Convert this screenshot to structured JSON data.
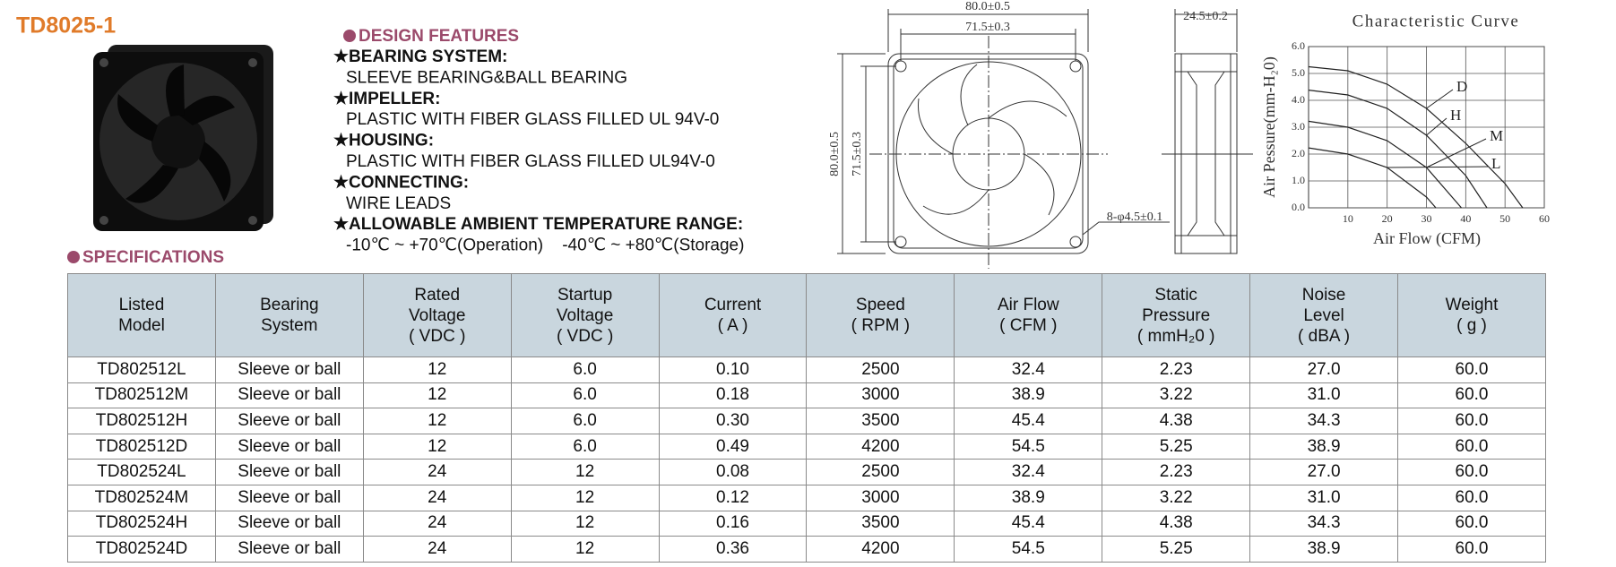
{
  "header": {
    "title": "TD8025-1"
  },
  "design": {
    "heading": "DESIGN FEATURES",
    "items": [
      {
        "heading": "★BEARING SYSTEM:",
        "text": "SLEEVE BEARING&BALL BEARING"
      },
      {
        "heading": "★IMPELLER:",
        "text": "PLASTIC WITH FIBER GLASS FILLED UL 94V-0"
      },
      {
        "heading": "★HOUSING:",
        "text": "PLASTIC WITH FIBER GLASS FILLED UL94V-0"
      },
      {
        "heading": "★CONNECTING:",
        "text": "WIRE LEADS"
      },
      {
        "heading": "★ALLOWABLE AMBIENT TEMPERATURE RANGE:",
        "text": "-10℃ ~ +70℃(Operation)    -40℃ ~ +80℃(Storage)"
      }
    ]
  },
  "dimensions": {
    "width": "80.0±0.5",
    "hole_spacing": "71.5±0.3",
    "height": "80.0±0.5",
    "hole_spacing_v": "71.5±0.3",
    "holes": "8-φ4.5±0.1",
    "depth": "24.5±0.2"
  },
  "curve": {
    "title": "Characteristic Curve",
    "x_label": "Air Flow (CFM)",
    "y_label": "Air Pessure(mm-H₂0)",
    "xlim": [
      0,
      60
    ],
    "ylim": [
      0,
      6
    ],
    "xticks": [
      10,
      20,
      30,
      40,
      50,
      60
    ],
    "yticks": [
      {
        "value": 0,
        "label": "0.0"
      },
      {
        "value": 1,
        "label": "1.0"
      },
      {
        "value": 2,
        "label": "2.0"
      },
      {
        "value": 3,
        "label": "3.0"
      },
      {
        "value": 4,
        "label": "4.0"
      },
      {
        "value": 5,
        "label": "5.0"
      },
      {
        "value": 6,
        "label": "6.0"
      }
    ],
    "series": [
      {
        "name": "D",
        "x": [
          0,
          10,
          20,
          30,
          40,
          50,
          54.5
        ],
        "values": [
          5.25,
          5.1,
          4.6,
          3.7,
          2.4,
          0.9,
          0
        ]
      },
      {
        "name": "H",
        "x": [
          0,
          10,
          20,
          30,
          40,
          45.4
        ],
        "values": [
          4.38,
          4.2,
          3.7,
          2.7,
          1.2,
          0
        ]
      },
      {
        "name": "M",
        "x": [
          0,
          10,
          20,
          30,
          38.9
        ],
        "values": [
          3.22,
          3.0,
          2.5,
          1.5,
          0
        ]
      },
      {
        "name": "L",
        "x": [
          0,
          10,
          20,
          30,
          32.4
        ],
        "values": [
          2.23,
          2.0,
          1.5,
          0.4,
          0
        ]
      }
    ]
  },
  "specifications": {
    "heading": "SPECIFICATIONS",
    "columns": [
      "Listed\nModel",
      "Bearing\nSystem",
      "Rated\nVoltage\n( VDC )",
      "Startup\nVoltage\n( VDC )",
      "Current\n( A )",
      "Speed\n( RPM )",
      "Air Flow\n( CFM )",
      "Static\nPressure\n( mmH₂0 )",
      "Noise\nLevel\n( dBA )",
      "Weight\n( g )"
    ],
    "rows": [
      [
        "TD802512L",
        "Sleeve or ball",
        "12",
        "6.0",
        "0.10",
        "2500",
        "32.4",
        "2.23",
        "27.0",
        "60.0"
      ],
      [
        "TD802512M",
        "Sleeve or ball",
        "12",
        "6.0",
        "0.18",
        "3000",
        "38.9",
        "3.22",
        "31.0",
        "60.0"
      ],
      [
        "TD802512H",
        "Sleeve or ball",
        "12",
        "6.0",
        "0.30",
        "3500",
        "45.4",
        "4.38",
        "34.3",
        "60.0"
      ],
      [
        "TD802512D",
        "Sleeve or ball",
        "12",
        "6.0",
        "0.49",
        "4200",
        "54.5",
        "5.25",
        "38.9",
        "60.0"
      ],
      [
        "TD802524L",
        "Sleeve or ball",
        "24",
        "12",
        "0.08",
        "2500",
        "32.4",
        "2.23",
        "27.0",
        "60.0"
      ],
      [
        "TD802524M",
        "Sleeve or ball",
        "24",
        "12",
        "0.12",
        "3000",
        "38.9",
        "3.22",
        "31.0",
        "60.0"
      ],
      [
        "TD802524H",
        "Sleeve or ball",
        "24",
        "12",
        "0.16",
        "3500",
        "45.4",
        "4.38",
        "34.3",
        "60.0"
      ],
      [
        "TD802524D",
        "Sleeve or ball",
        "24",
        "12",
        "0.36",
        "4200",
        "54.5",
        "5.25",
        "38.9",
        "60.0"
      ]
    ]
  }
}
